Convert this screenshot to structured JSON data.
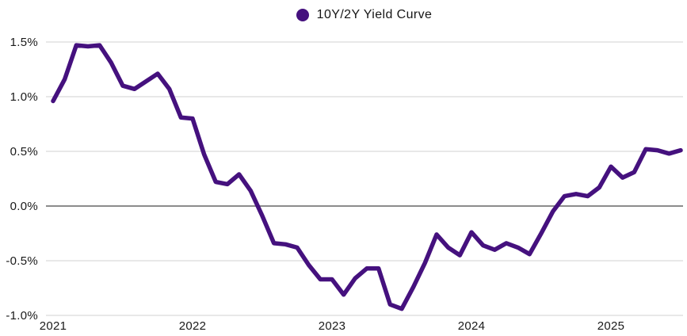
{
  "legend": {
    "label": "10Y/2Y Yield Curve",
    "marker_color": "#45117e"
  },
  "chart_data": {
    "type": "line",
    "title": "10Y/2Y Yield Curve",
    "xlabel": "",
    "ylabel": "",
    "frequency": "monthly",
    "start_month": "2021-01",
    "end_month": "2025-07",
    "x_tick_labels": [
      "2021",
      "2022",
      "2023",
      "2024",
      "2025"
    ],
    "y_tick_labels": [
      "1.5%",
      "1.0%",
      "0.5%",
      "0.0%",
      "-0.5%",
      "-1.0%"
    ],
    "y_ticks": [
      1.5,
      1.0,
      0.5,
      0.0,
      -0.5,
      -1.0
    ],
    "ylim": [
      -1.0,
      1.5
    ],
    "grid": true,
    "zero_line_emphasized": true,
    "legend_position": "top-center",
    "series": [
      {
        "name": "10Y/2Y Yield Curve",
        "color": "#45117e",
        "values": [
          0.96,
          1.16,
          1.47,
          1.46,
          1.47,
          1.31,
          1.1,
          1.07,
          1.14,
          1.21,
          1.07,
          0.81,
          0.8,
          0.47,
          0.22,
          0.2,
          0.29,
          0.14,
          -0.09,
          -0.34,
          -0.35,
          -0.38,
          -0.54,
          -0.67,
          -0.67,
          -0.81,
          -0.66,
          -0.57,
          -0.57,
          -0.9,
          -0.94,
          -0.74,
          -0.52,
          -0.26,
          -0.38,
          -0.45,
          -0.24,
          -0.36,
          -0.4,
          -0.34,
          -0.38,
          -0.44,
          -0.25,
          -0.05,
          0.09,
          0.11,
          0.09,
          0.17,
          0.36,
          0.26,
          0.31,
          0.52,
          0.51,
          0.48,
          0.51
        ]
      }
    ],
    "colors": {
      "line": "#45117e",
      "grid": "#d9d9d9",
      "zero_line": "#8c8c8c",
      "tick_text": "#1a1a1a",
      "background": "#ffffff"
    }
  }
}
